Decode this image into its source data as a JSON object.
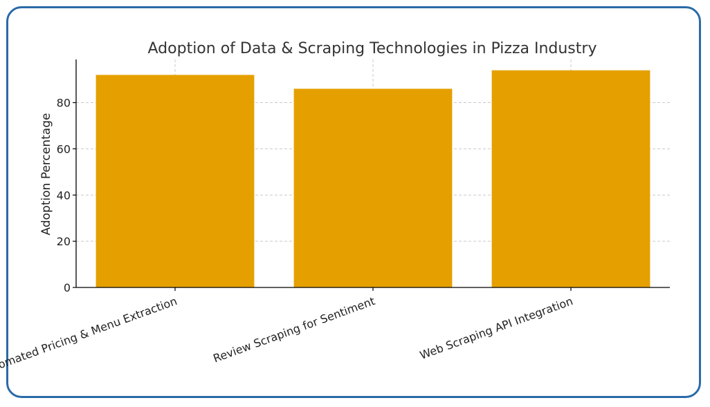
{
  "chart_data": {
    "type": "bar",
    "title": "Adoption of Data & Scraping Technologies in Pizza Industry",
    "xlabel": "",
    "ylabel": "Adoption Percentage",
    "categories": [
      "Automated Pricing & Menu Extraction",
      "Review Scraping for Sentiment",
      "Web Scraping API Integration"
    ],
    "values": [
      92,
      86,
      94
    ],
    "ylim": [
      0,
      98.7
    ],
    "yticks": [
      0,
      20,
      40,
      60,
      80
    ],
    "grid": true,
    "bar_color": "#e5a000",
    "frame_color": "#2a6aa8"
  }
}
